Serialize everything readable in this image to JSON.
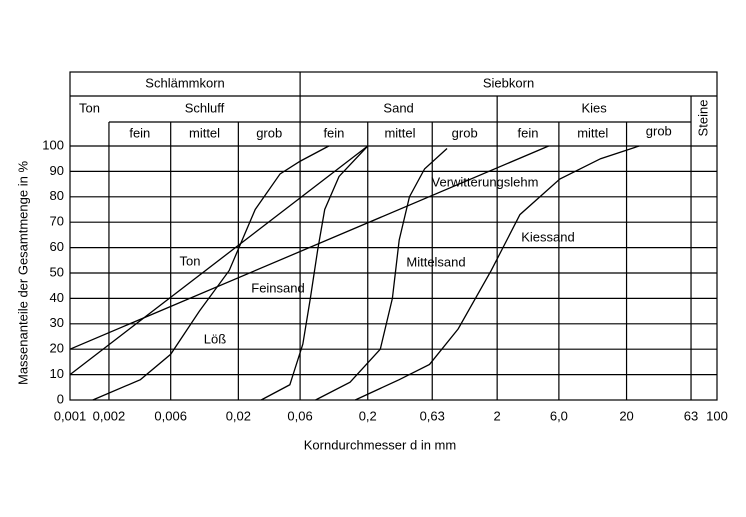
{
  "chart_data": {
    "type": "line",
    "log_x": true,
    "grid": true,
    "xlabel": "Korndurchmesser d in mm",
    "ylabel": "Massenanteile der Gesamtmenge in %",
    "header": {
      "row1": [
        "Schlämmkorn",
        "Siebkorn"
      ],
      "row2": [
        "Ton",
        "Schluff",
        "Sand",
        "Kies",
        "Steine"
      ],
      "row3": [
        [
          "fein",
          "mittel",
          "grob"
        ],
        [
          "fein",
          "mittel",
          "grob"
        ],
        [
          "fein",
          "mittel",
          "grob"
        ]
      ]
    },
    "xlim": [
      0.001,
      100
    ],
    "ylim": [
      0,
      100
    ],
    "xticks": [
      {
        "value": 0.001,
        "label": "0,001"
      },
      {
        "value": 0.002,
        "label": "0,002"
      },
      {
        "value": 0.006,
        "label": "0,006"
      },
      {
        "value": 0.02,
        "label": "0,02"
      },
      {
        "value": 0.06,
        "label": "0,06"
      },
      {
        "value": 0.2,
        "label": "0,2"
      },
      {
        "value": 0.63,
        "label": "0,63"
      },
      2,
      {
        "value": 6,
        "label": "6,0"
      },
      20,
      63,
      100
    ],
    "yticks": [
      0,
      10,
      20,
      30,
      40,
      50,
      60,
      70,
      80,
      90,
      100
    ],
    "series": [
      {
        "name": "Ton",
        "color": "#000000",
        "x": [
          0.001,
          0.2
        ],
        "values": [
          10,
          100
        ]
      },
      {
        "name": "Verwitterungslehm",
        "color": "#000000",
        "x": [
          0.001,
          5
        ],
        "values": [
          20,
          100
        ]
      },
      {
        "name": "Löß",
        "color": "#000000",
        "x": [
          0.0015,
          0.0035,
          0.006,
          0.01,
          0.017,
          0.027,
          0.042,
          0.06,
          0.1
        ],
        "values": [
          0,
          8,
          18,
          35,
          51,
          75,
          89,
          94,
          100
        ]
      },
      {
        "name": "Feinsand",
        "color": "#000000",
        "x": [
          0.03,
          0.05,
          0.063,
          0.072,
          0.082,
          0.093,
          0.12,
          0.2
        ],
        "values": [
          0,
          6,
          22,
          40,
          59,
          75,
          88,
          100
        ]
      },
      {
        "name": "Mittelsand",
        "color": "#000000",
        "x": [
          0.079,
          0.146,
          0.25,
          0.31,
          0.35,
          0.42,
          0.55,
          0.82
        ],
        "values": [
          0,
          7,
          20,
          40,
          63,
          80,
          91,
          99
        ]
      },
      {
        "name": "Kiessand",
        "color": "#000000",
        "x": [
          0.16,
          0.35,
          0.6,
          1.0,
          1.8,
          3.0,
          6.1,
          12.6,
          25
        ],
        "values": [
          0,
          8,
          14,
          28,
          51,
          73,
          87,
          95,
          100
        ]
      }
    ]
  }
}
